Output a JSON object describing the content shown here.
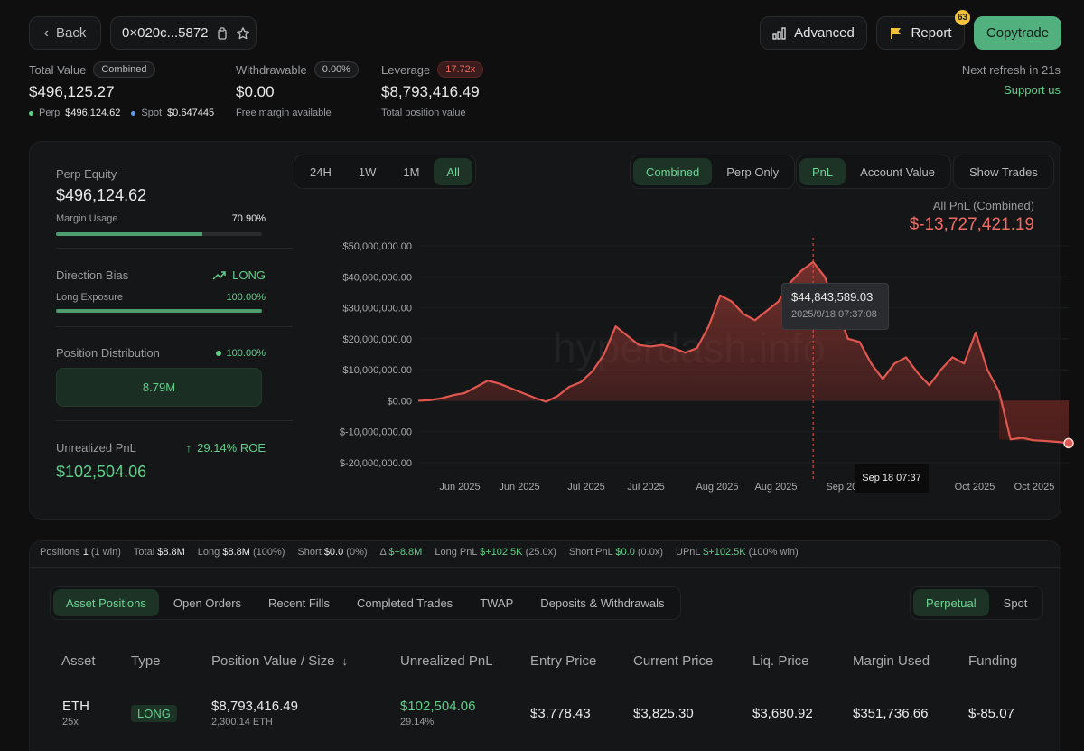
{
  "header": {
    "back_label": "Back",
    "address": "0×020c...5872",
    "advanced_label": "Advanced",
    "report_label": "Report",
    "report_badge": "63",
    "copytrade_label": "Copytrade",
    "refresh_text": "Next refresh in 21s",
    "support_label": "Support us"
  },
  "summary": {
    "total_value_label": "Total Value",
    "total_value_tag": "Combined",
    "total_value": "$496,125.27",
    "perp_label": "Perp",
    "perp_value": "$496,124.62",
    "spot_label": "Spot",
    "spot_value": "$0.647445",
    "withdrawable_label": "Withdrawable",
    "withdrawable_pct": "0.00%",
    "withdrawable_value": "$0.00",
    "withdrawable_sub": "Free margin available",
    "leverage_label": "Leverage",
    "leverage_tag": "17.72x",
    "leverage_value": "$8,793,416.49",
    "leverage_sub": "Total position value"
  },
  "left": {
    "perp_equity_label": "Perp Equity",
    "perp_equity_value": "$496,124.62",
    "margin_usage_label": "Margin Usage",
    "margin_usage_value": "70.90%",
    "margin_usage_fraction": 0.709,
    "direction_label": "Direction Bias",
    "direction_value": "LONG",
    "long_exposure_label": "Long Exposure",
    "long_exposure_value": "100.00%",
    "long_exposure_fraction": 1.0,
    "distribution_label": "Position Distribution",
    "distribution_value": "100.00%",
    "distribution_box": "8.79M",
    "upnl_label": "Unrealized PnL",
    "upnl_roe": "29.14% ROE",
    "upnl_value": "$102,504.06"
  },
  "chart_controls": {
    "ranges": [
      "24H",
      "1W",
      "1M",
      "All"
    ],
    "range_active": "All",
    "modes": [
      "Combined",
      "Perp Only"
    ],
    "mode_active": "Combined",
    "metrics": [
      "PnL",
      "Account Value"
    ],
    "metric_active": "PnL",
    "show_trades_label": "Show Trades",
    "pnl_caption": "All PnL (Combined)",
    "pnl_total": "$-13,727,421.19",
    "tooltip_value": "$44,843,589.03",
    "tooltip_time": "2025/9/18 07:37:08",
    "crosshair_label": "Sep 18 07:37",
    "watermark": "hyperdash.info"
  },
  "chart_data": {
    "type": "area",
    "title": "",
    "xlabel": "",
    "ylabel": "",
    "y_ticks": [
      "$50,000,000.00",
      "$40,000,000.00",
      "$30,000,000.00",
      "$20,000,000.00",
      "$10,000,000.00",
      "$0.00",
      "$-10,000,000.00",
      "$-20,000,000.00"
    ],
    "x_ticks": [
      "Jun 2025",
      "Jun 2025",
      "Jul 2025",
      "Jul 2025",
      "Aug 2025",
      "Aug 2025",
      "Sep 2025",
      "Sep 2025",
      "Oct 2025",
      "Oct 2025"
    ],
    "ylim": [
      -20000000,
      50000000
    ],
    "series": [
      {
        "values": [
          0,
          200000,
          800000,
          1800000,
          2500000,
          4500000,
          6500000,
          5500000,
          4000000,
          2500000,
          1000000,
          -300000,
          1500000,
          4500000,
          6000000,
          9500000,
          15000000,
          24000000,
          21000000,
          18000000,
          17500000,
          18000000,
          17000000,
          15500000,
          17000000,
          24000000,
          34000000,
          32000000,
          28000000,
          26000000,
          29000000,
          32000000,
          38000000,
          42000000,
          44800000,
          40000000,
          30000000,
          20000000,
          19000000,
          12000000,
          7000000,
          12000000,
          14000000,
          9000000,
          5000000,
          10000000,
          14000000,
          12000000,
          22000000,
          10000000,
          3000000,
          -12500000,
          -12000000,
          -12800000,
          -13000000,
          -13300000,
          -13700000
        ]
      }
    ]
  },
  "positions_bar": {
    "positions_label": "Positions",
    "positions_value": "1",
    "positions_win": "(1 win)",
    "total_label": "Total",
    "total_value": "$8.8M",
    "long_label": "Long",
    "long_value": "$8.8M",
    "long_pct": "(100%)",
    "short_label": "Short",
    "short_value": "$0.0",
    "short_pct": "(0%)",
    "delta_label": "Δ",
    "delta_value": "$+8.8M",
    "longpnl_label": "Long PnL",
    "longpnl_value": "$+102.5K",
    "longpnl_x": "(25.0x)",
    "shortpnl_label": "Short PnL",
    "shortpnl_value": "$0.0",
    "shortpnl_x": "(0.0x)",
    "upnl_label": "UPnL",
    "upnl_value": "$+102.5K",
    "upnl_win": "(100% win)"
  },
  "tabs": [
    "Asset Positions",
    "Open Orders",
    "Recent Fills",
    "Completed Trades",
    "TWAP",
    "Deposits & Withdrawals"
  ],
  "tab_active": "Asset Positions",
  "market_tabs": [
    "Perpetual",
    "Spot"
  ],
  "market_active": "Perpetual",
  "table": {
    "headers": [
      "Asset",
      "Type",
      "Position Value / Size",
      "Unrealized PnL",
      "Entry Price",
      "Current Price",
      "Liq. Price",
      "Margin Used",
      "Funding"
    ],
    "row": {
      "asset": "ETH",
      "leverage": "25x",
      "type": "LONG",
      "value": "$8,793,416.49",
      "size": "2,300.14 ETH",
      "upnl": "$102,504.06",
      "upnl_pct": "29.14%",
      "entry": "$3,778.43",
      "current": "$3,825.30",
      "liq": "$3,680.92",
      "margin": "$351,736.66",
      "funding": "$-85.07"
    }
  },
  "colors": {
    "accent": "#5fcf8a",
    "negative": "#ef6b63",
    "line": "#e0574f",
    "background": "#0f0f10"
  }
}
